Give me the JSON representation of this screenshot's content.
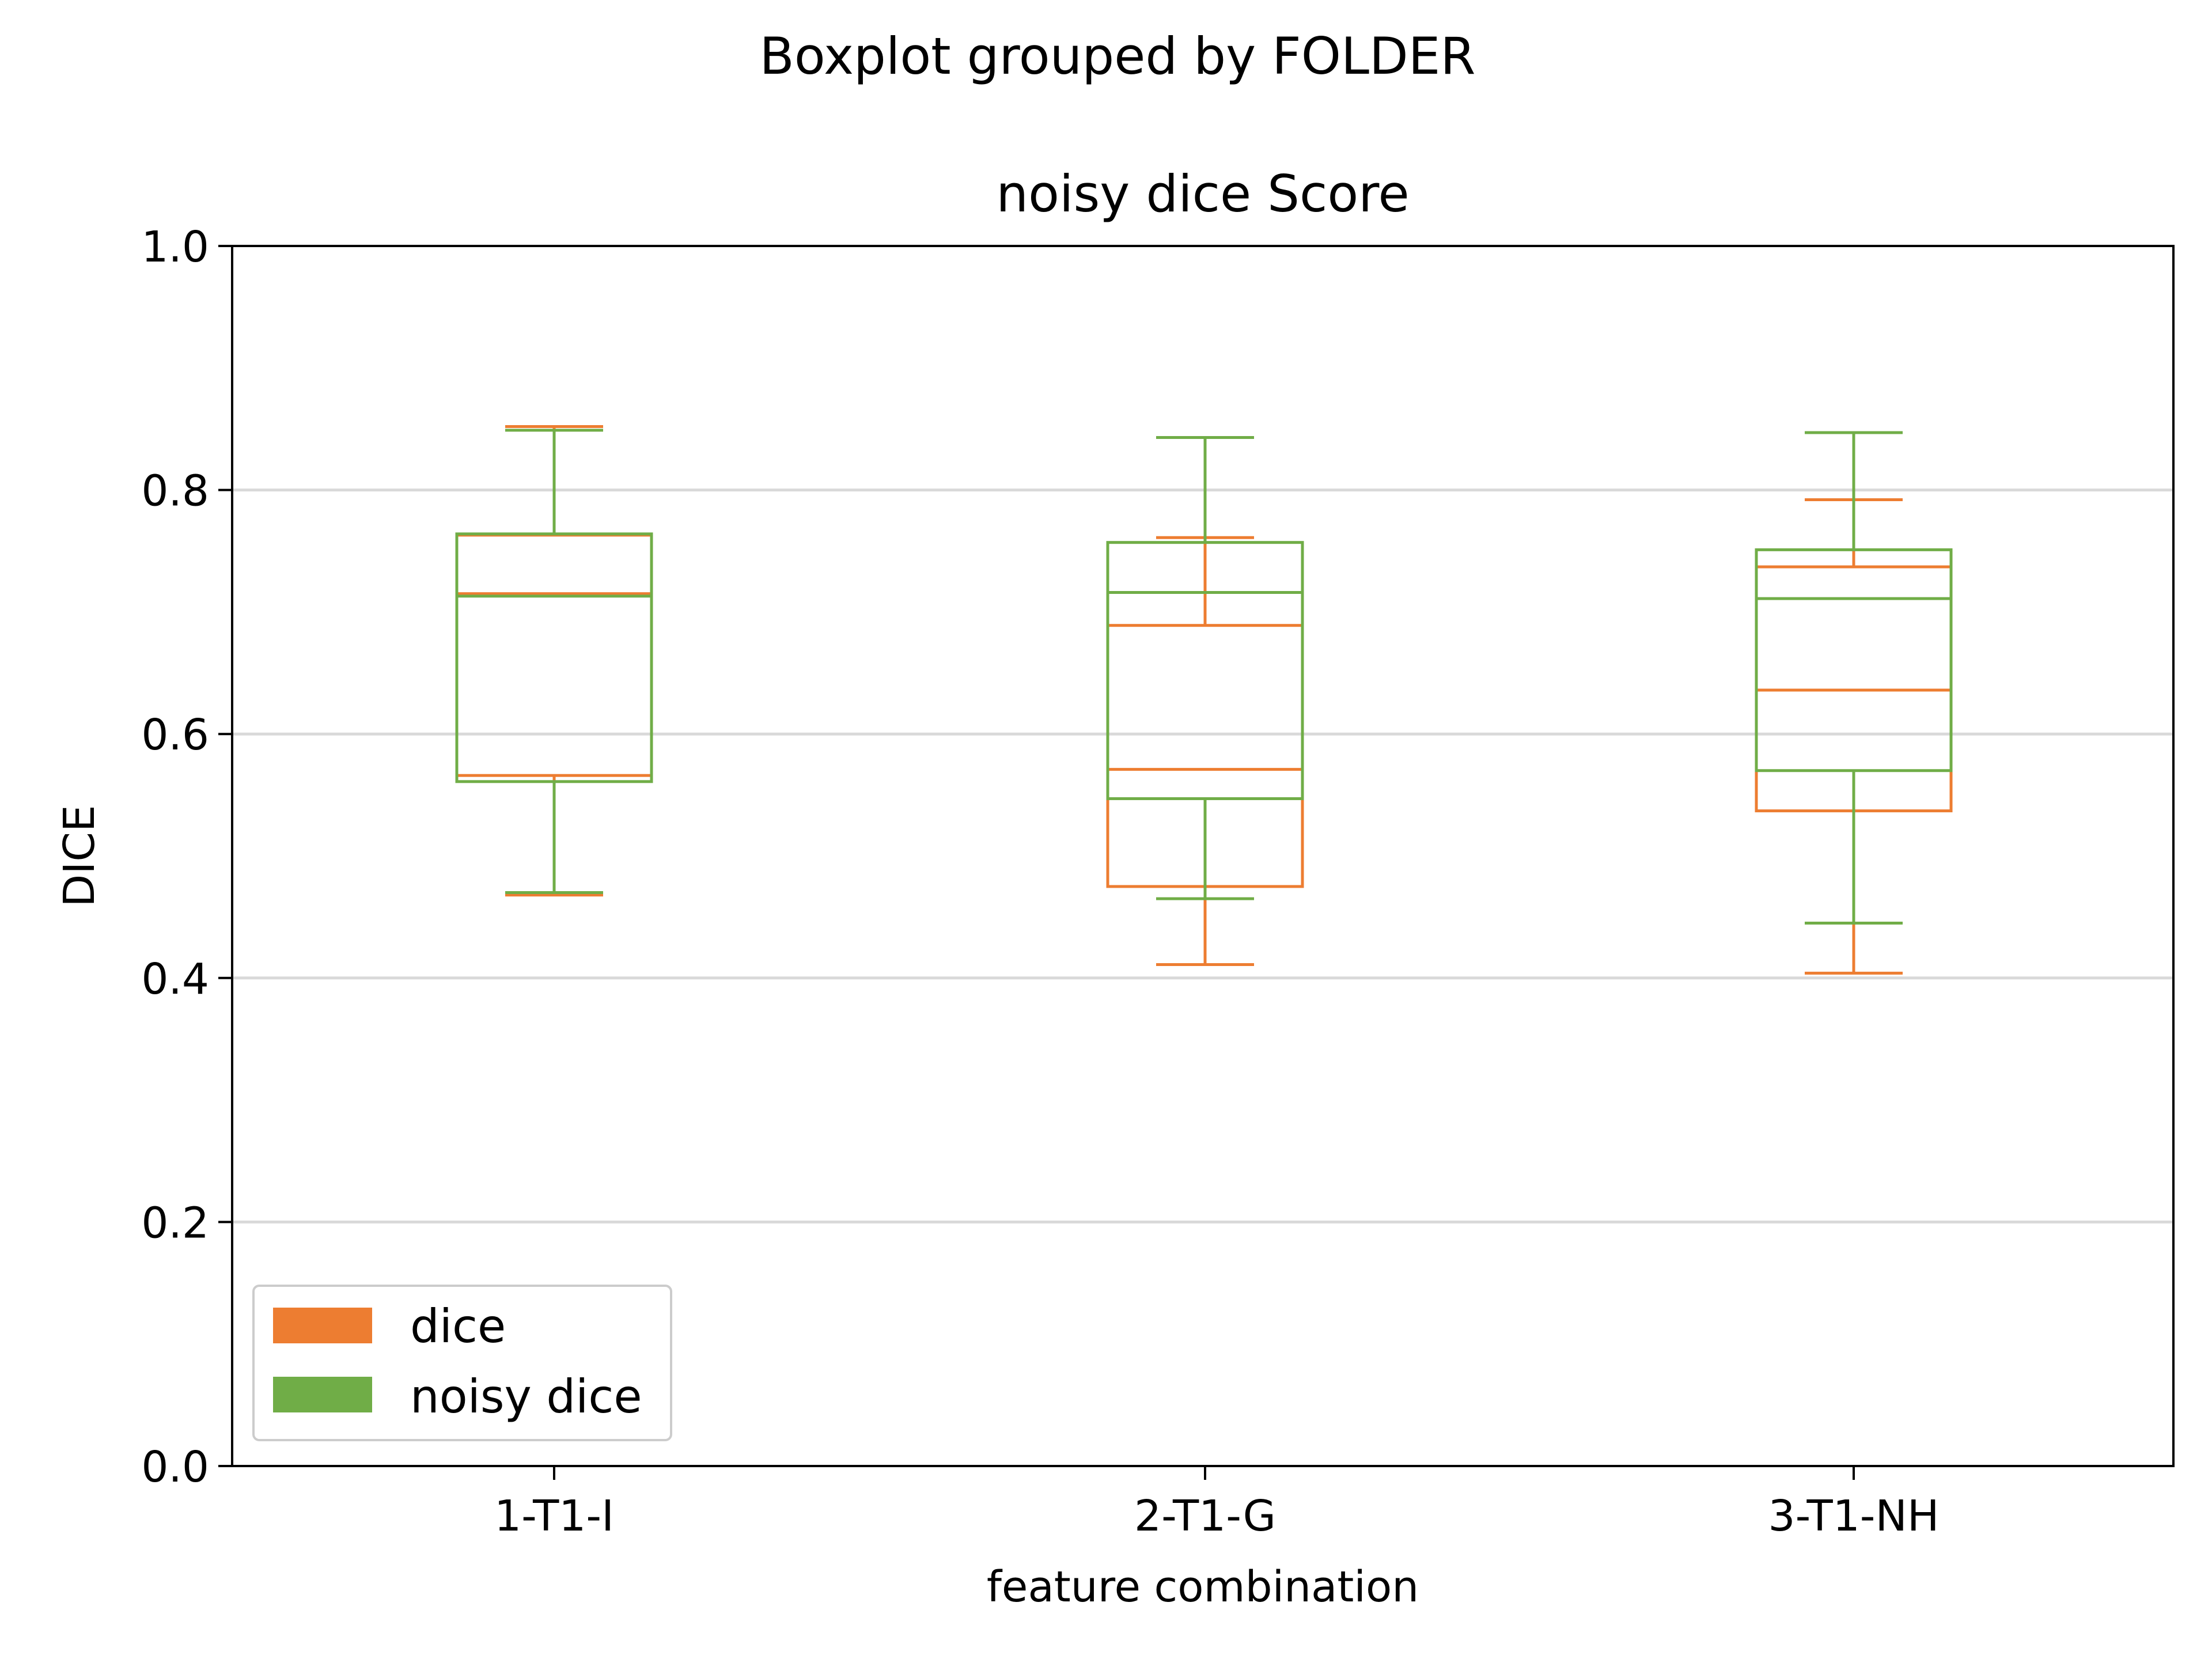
{
  "suptitle": "Boxplot grouped by FOLDER",
  "chart_data": {
    "type": "boxplot",
    "title": "noisy dice Score",
    "xlabel": "feature combination",
    "ylabel": "DICE",
    "ylim": [
      0.0,
      1.0
    ],
    "yticks": [
      "0.0",
      "0.2",
      "0.4",
      "0.6",
      "0.8",
      "1.0"
    ],
    "categories": [
      "1-T1-I",
      "2-T1-G",
      "3-T1-NH"
    ],
    "grid": "horizontal",
    "legend_position": "lower-left",
    "series": [
      {
        "name": "dice",
        "color": "#ED7D31",
        "boxes": [
          {
            "whisker_low": 0.468,
            "q1": 0.566,
            "median": 0.715,
            "q3": 0.763,
            "whisker_high": 0.852
          },
          {
            "whisker_low": 0.411,
            "q1": 0.475,
            "median": 0.571,
            "q3": 0.689,
            "whisker_high": 0.761
          },
          {
            "whisker_low": 0.404,
            "q1": 0.537,
            "median": 0.636,
            "q3": 0.737,
            "whisker_high": 0.792
          }
        ]
      },
      {
        "name": "noisy dice",
        "color": "#70AD47",
        "boxes": [
          {
            "whisker_low": 0.47,
            "q1": 0.561,
            "median": 0.713,
            "q3": 0.764,
            "whisker_high": 0.849
          },
          {
            "whisker_low": 0.465,
            "q1": 0.547,
            "median": 0.716,
            "q3": 0.757,
            "whisker_high": 0.843
          },
          {
            "whisker_low": 0.445,
            "q1": 0.57,
            "median": 0.711,
            "q3": 0.751,
            "whisker_high": 0.847
          }
        ]
      }
    ]
  }
}
